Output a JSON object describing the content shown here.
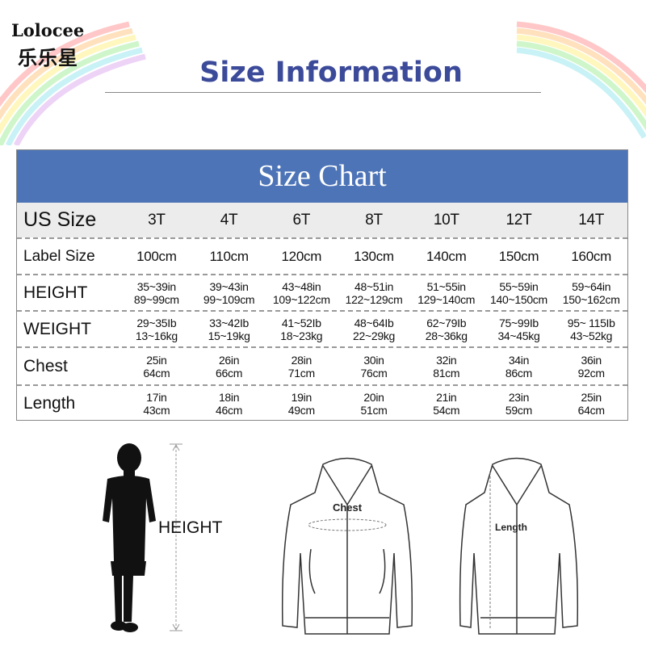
{
  "brand": {
    "name": "Lolocee",
    "name_cn": "乐乐星"
  },
  "header": {
    "title": "Size Information"
  },
  "table": {
    "title": "Size Chart",
    "accent_color": "#4d74b7",
    "rows": [
      {
        "label": "US Size",
        "values": [
          "3T",
          "4T",
          "6T",
          "8T",
          "10T",
          "12T",
          "14T"
        ]
      },
      {
        "label": "Label Size",
        "values": [
          "100cm",
          "110cm",
          "120cm",
          "130cm",
          "140cm",
          "150cm",
          "160cm"
        ]
      },
      {
        "label": "HEIGHT",
        "values": [
          [
            "35~39in",
            "89~99cm"
          ],
          [
            "39~43in",
            "99~109cm"
          ],
          [
            "43~48in",
            "109~122cm"
          ],
          [
            "48~51in",
            "122~129cm"
          ],
          [
            "51~55in",
            "129~140cm"
          ],
          [
            "55~59in",
            "140~150cm"
          ],
          [
            "59~64in",
            "150~162cm"
          ]
        ]
      },
      {
        "label": "WEIGHT",
        "values": [
          [
            "29~35Ib",
            "13~16kg"
          ],
          [
            "33~42Ib",
            "15~19kg"
          ],
          [
            "41~52Ib",
            "18~23kg"
          ],
          [
            "48~64Ib",
            "22~29kg"
          ],
          [
            "62~79Ib",
            "28~36kg"
          ],
          [
            "75~99Ib",
            "34~45kg"
          ],
          [
            "95~ 115Ib",
            "43~52kg"
          ]
        ]
      },
      {
        "label": "Chest",
        "values": [
          [
            "25in",
            "64cm"
          ],
          [
            "26in",
            "66cm"
          ],
          [
            "28in",
            "71cm"
          ],
          [
            "30in",
            "76cm"
          ],
          [
            "32in",
            "81cm"
          ],
          [
            "34in",
            "86cm"
          ],
          [
            "36in",
            "92cm"
          ]
        ]
      },
      {
        "label": "Length",
        "values": [
          [
            "17in",
            "43cm"
          ],
          [
            "18in",
            "46cm"
          ],
          [
            "19in",
            "49cm"
          ],
          [
            "20in",
            "51cm"
          ],
          [
            "21in",
            "54cm"
          ],
          [
            "23in",
            "59cm"
          ],
          [
            "25in",
            "64cm"
          ]
        ]
      }
    ]
  },
  "illustrations": {
    "height_label": "HEIGHT",
    "chest_label": "Chest",
    "length_label": "Length"
  }
}
